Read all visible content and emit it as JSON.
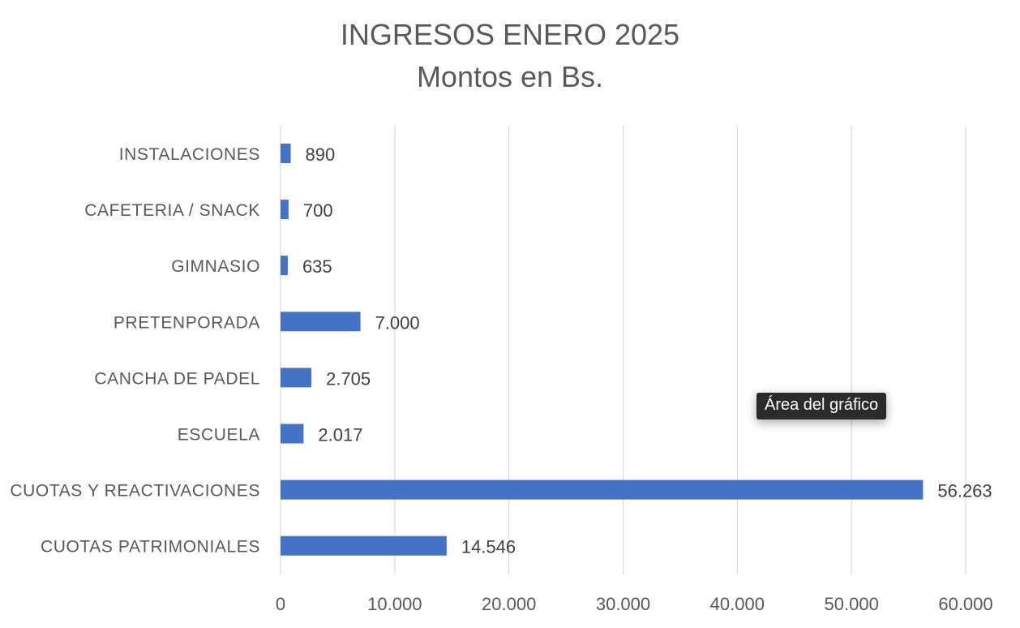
{
  "chart_data": {
    "type": "bar",
    "orientation": "horizontal",
    "title": "INGRESOS ENERO 2025",
    "subtitle": "Montos en Bs.",
    "categories": [
      "INSTALACIONES",
      "CAFETERIA / SNACK",
      "GIMNASIO",
      "PRETENPORADA",
      "CANCHA DE PADEL",
      "ESCUELA",
      "CUOTAS Y REACTIVACIONES",
      "CUOTAS PATRIMONIALES"
    ],
    "values": [
      890,
      700,
      635,
      7000,
      2705,
      2017,
      56263,
      14546
    ],
    "data_labels": [
      "890",
      "700",
      "635",
      "7.000",
      "2.705",
      "2.017",
      "56.263",
      "14.546"
    ],
    "xlim": [
      0,
      60000
    ],
    "x_ticks": [
      0,
      10000,
      20000,
      30000,
      40000,
      50000,
      60000
    ],
    "x_tick_labels": [
      "0",
      "10.000",
      "20.000",
      "30.000",
      "40.000",
      "50.000",
      "60.000"
    ],
    "grid": true,
    "legend": "none",
    "colors": {
      "bar": "#4472C4",
      "grid": "#d9d9d9",
      "text": "#595959",
      "label": "#404040"
    }
  },
  "tooltip": {
    "text": "Área del gráfico"
  }
}
